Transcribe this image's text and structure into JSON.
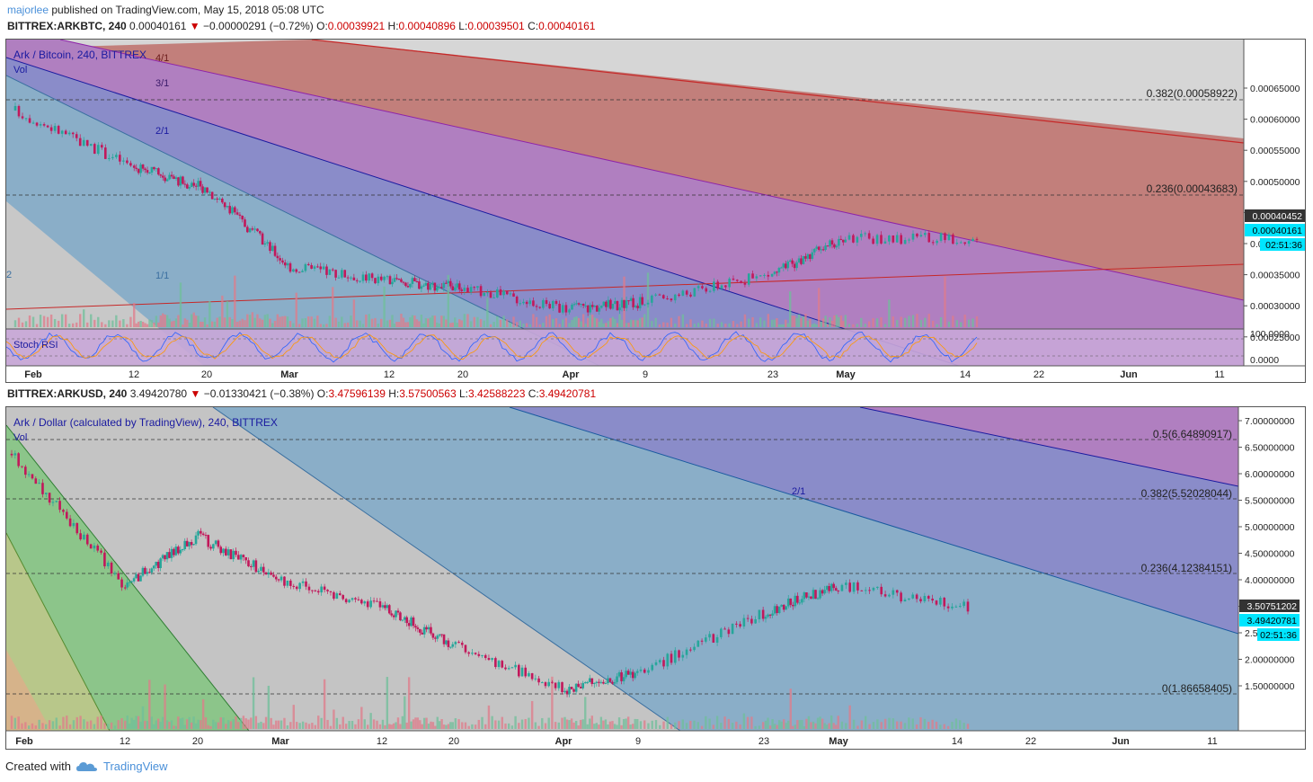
{
  "header": {
    "author": "majorlee",
    "published": "published on TradingView.com, May 15, 2018 05:08 UTC"
  },
  "top": {
    "symbol": "BITTREX:ARKBTC, 240",
    "price": "0.00040161",
    "change": "−0.00000291 (−0.72%)",
    "o_label": "O:",
    "o": "0.00039921",
    "h_label": "H:",
    "h": "0.00040896",
    "l_label": "L:",
    "l": "0.00039501",
    "c_label": "C:",
    "c": "0.00040161",
    "legend_title": "Ark / Bitcoin, 240, BITTREX",
    "vol_label": "Vol",
    "stoch_label": "Stoch RSI",
    "fan_labels": [
      "4/1",
      "3/1",
      "2/1",
      "1/1",
      "2"
    ],
    "fib_labels": [
      "0.382(0.00058922)",
      "0.236(0.00043683)"
    ],
    "y_ticks": [
      "0.00065000",
      "0.00060000",
      "0.00055000",
      "0.00050000",
      "0.00045000",
      "0.0004",
      "0.00035000",
      "0.00030000",
      "0.00025000"
    ],
    "stoch_ticks": [
      "100.0000",
      "0.0000"
    ],
    "price_tags": [
      "0.00040452",
      "0.00040161",
      "02:51:36"
    ],
    "x_ticks": [
      "Feb",
      "12",
      "20",
      "Mar",
      "12",
      "20",
      "Apr",
      "9",
      "23",
      "May",
      "14",
      "22",
      "Jun",
      "11"
    ]
  },
  "bottom": {
    "symbol": "BITTREX:ARKUSD, 240",
    "price": "3.49420780",
    "change": "−0.01330421 (−0.38%)",
    "o_label": "O:",
    "o": "3.47596139",
    "h_label": "H:",
    "h": "3.57500563",
    "l_label": "L:",
    "l": "3.42588223",
    "c_label": "C:",
    "c": "3.49420781",
    "legend_title": "Ark / Dollar (calculated by TradingView), 240, BITTREX",
    "vol_label": "Vol",
    "fan_labels": [
      "2/1"
    ],
    "fib_labels": [
      "0.5(6.64890917)",
      "0.382(5.52028044)",
      "0.236(4.12384151)",
      "0(1.86658405)"
    ],
    "y_ticks": [
      "7.00000000",
      "6.50000000",
      "6.00000000",
      "5.50000000",
      "5.00000000",
      "4.50000000",
      "4.00000000",
      "3.0",
      "2.50000000",
      "2.00000000",
      "1.50000000"
    ],
    "price_tags": [
      "3.50751202",
      "3.49420781",
      "02:51:36"
    ],
    "x_ticks": [
      "Feb",
      "12",
      "20",
      "Mar",
      "12",
      "20",
      "Apr",
      "9",
      "23",
      "May",
      "14",
      "22",
      "Jun",
      "11"
    ]
  },
  "footer": {
    "created_with": "Created with",
    "brand": "TradingView"
  },
  "colors": {
    "up": "#26a69a",
    "down": "#c2185b",
    "accent": "#00bcd4",
    "link": "#4a90d9",
    "title": "#1a1aa0"
  },
  "chart_data": [
    {
      "type": "candlestick",
      "title": "Ark / Bitcoin, 240, BITTREX",
      "x": [
        "Feb",
        "12",
        "20",
        "Mar",
        "12",
        "20",
        "Apr",
        "9",
        "23",
        "May",
        "14"
      ],
      "close": [
        0.00058,
        0.0005,
        0.00047,
        0.00036,
        0.00034,
        0.00033,
        0.0003,
        0.00031,
        0.00035,
        0.0004,
        0.0004
      ],
      "ylim": [
        0.00022,
        0.00068
      ],
      "fib_levels": [
        0.00058922,
        0.00043683
      ],
      "last": 0.00040161
    },
    {
      "type": "candlestick",
      "title": "Ark / Dollar (calculated by TradingView), 240, BITTREX",
      "x": [
        "Feb",
        "12",
        "20",
        "Mar",
        "12",
        "20",
        "Apr",
        "9",
        "23",
        "May",
        "14"
      ],
      "close": [
        6.3,
        3.9,
        4.8,
        4.0,
        3.5,
        2.8,
        2.0,
        2.3,
        3.4,
        3.9,
        3.49
      ],
      "ylim": [
        1.25,
        7.15
      ],
      "fib_levels": [
        6.64890917,
        5.52028044,
        4.12384151,
        1.86658405
      ],
      "last": 3.49420781
    }
  ]
}
